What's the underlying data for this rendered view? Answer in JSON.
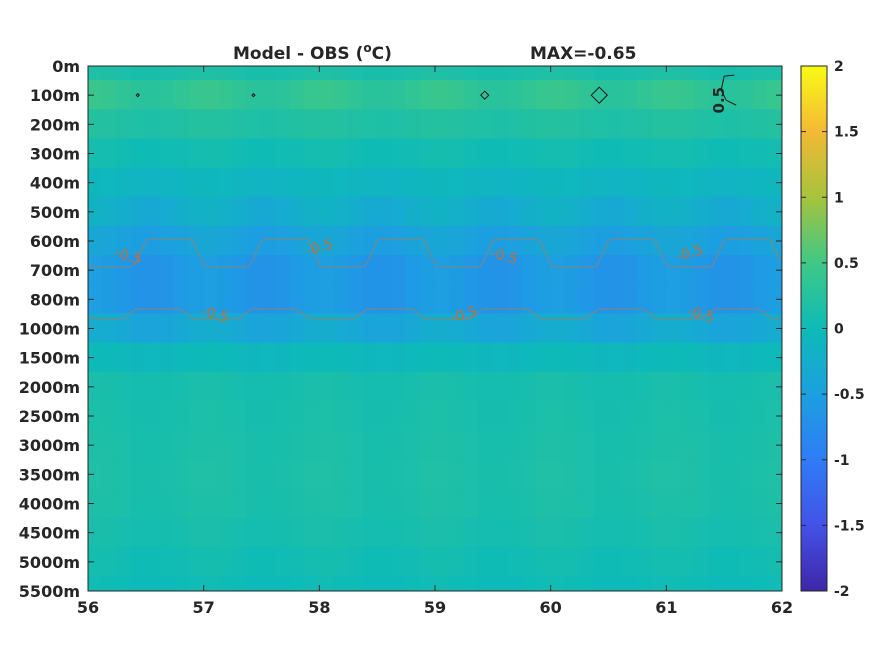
{
  "chart_data": {
    "type": "heatmap",
    "title": "Model - OBS (°C)",
    "title_prefix": "Model - OBS (",
    "title_superscript": "o",
    "title_suffix": "C)",
    "max_text": "MAX=-0.65",
    "xlabel": "",
    "ylabel": "",
    "x_ticks": [
      "56",
      "57",
      "58",
      "59",
      "60",
      "61",
      "62"
    ],
    "xlim": [
      56,
      62
    ],
    "y_ticks": [
      "0m",
      "100m",
      "200m",
      "300m",
      "400m",
      "500m",
      "600m",
      "700m",
      "800m",
      "1000m",
      "1500m",
      "2000m",
      "2500m",
      "3000m",
      "3500m",
      "4000m",
      "4500m",
      "5000m",
      "5500m"
    ],
    "colorbar": {
      "ticks": [
        "2",
        "1.5",
        "1",
        "0.5",
        "0",
        "-0.5",
        "-1",
        "-1.5",
        "-2"
      ],
      "range": [
        -2,
        2
      ],
      "colormap": "parula"
    },
    "depth_profile": [
      {
        "depth": "0m",
        "value": 0.15
      },
      {
        "depth": "100m",
        "value": 0.35
      },
      {
        "depth": "200m",
        "value": 0.2
      },
      {
        "depth": "300m",
        "value": 0.05
      },
      {
        "depth": "400m",
        "value": -0.1
      },
      {
        "depth": "500m",
        "value": -0.25
      },
      {
        "depth": "600m",
        "value": -0.45
      },
      {
        "depth": "700m",
        "value": -0.6
      },
      {
        "depth": "800m",
        "value": -0.6
      },
      {
        "depth": "1000m",
        "value": -0.35
      },
      {
        "depth": "1500m",
        "value": -0.05
      },
      {
        "depth": "2000m",
        "value": 0.1
      },
      {
        "depth": "2500m",
        "value": 0.12
      },
      {
        "depth": "3000m",
        "value": 0.14
      },
      {
        "depth": "3500m",
        "value": 0.15
      },
      {
        "depth": "4000m",
        "value": 0.14
      },
      {
        "depth": "4500m",
        "value": 0.1
      },
      {
        "depth": "5000m",
        "value": 0.05
      },
      {
        "depth": "5500m",
        "value": 0.0
      }
    ],
    "contour_labels": [
      {
        "text": "-0.5",
        "x": 56.35,
        "depth": "650m"
      },
      {
        "text": "-0.5",
        "x": 58.0,
        "depth": "620m"
      },
      {
        "text": "-0.5",
        "x": 59.6,
        "depth": "650m"
      },
      {
        "text": "-0.5",
        "x": 61.2,
        "depth": "640m"
      },
      {
        "text": "-0.5",
        "x": 57.1,
        "depth": "900m"
      },
      {
        "text": "-0.5",
        "x": 59.25,
        "depth": "900m"
      },
      {
        "text": "-0.5",
        "x": 61.3,
        "depth": "900m"
      },
      {
        "text": "0.5",
        "x": 61.5,
        "depth": "100m"
      }
    ],
    "grid": false,
    "legend": "none"
  }
}
